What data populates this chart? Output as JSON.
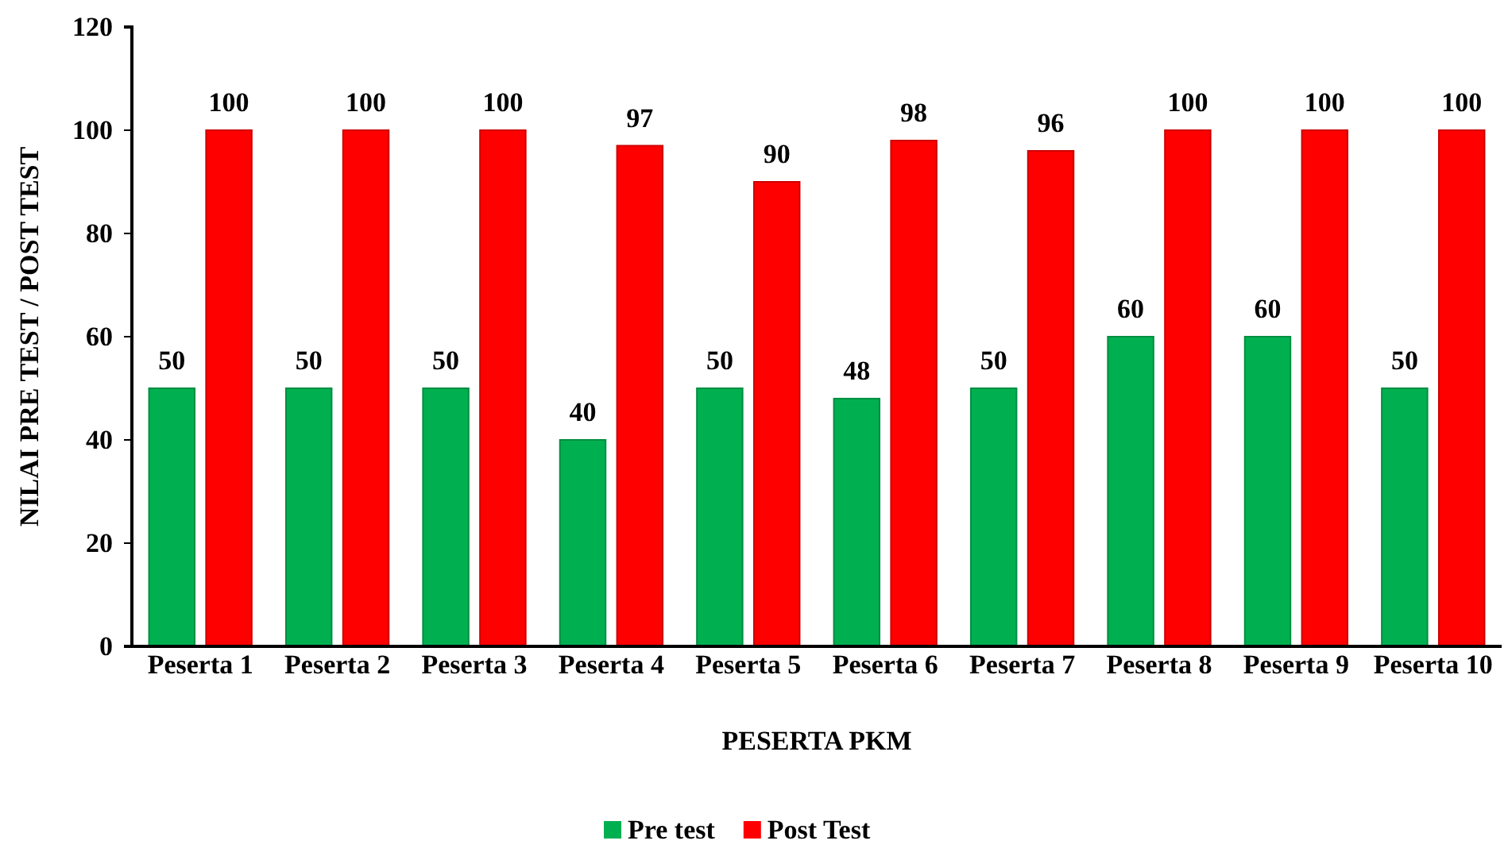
{
  "chart_data": {
    "type": "bar",
    "xlabel": "PESERTA PKM",
    "ylabel": "NILAI PRE TEST / POST TEST",
    "categories": [
      "Peserta 1",
      "Peserta 2",
      "Peserta 3",
      "Peserta 4",
      "Peserta 5",
      "Peserta 6",
      "Peserta 7",
      "Peserta 8",
      "Peserta 9",
      "Peserta 10"
    ],
    "series": [
      {
        "name": "Pre test",
        "color": "#00b050",
        "values": [
          50,
          50,
          50,
          40,
          50,
          48,
          50,
          60,
          60,
          50
        ]
      },
      {
        "name": "Post Test",
        "color": "#ff0000",
        "values": [
          100,
          100,
          100,
          97,
          90,
          98,
          96,
          100,
          100,
          100
        ]
      }
    ],
    "ylim": [
      0,
      120
    ],
    "yticks": [
      0,
      20,
      40,
      60,
      80,
      100,
      120
    ],
    "data_labels": true,
    "legend": "bottom",
    "grid": false
  }
}
